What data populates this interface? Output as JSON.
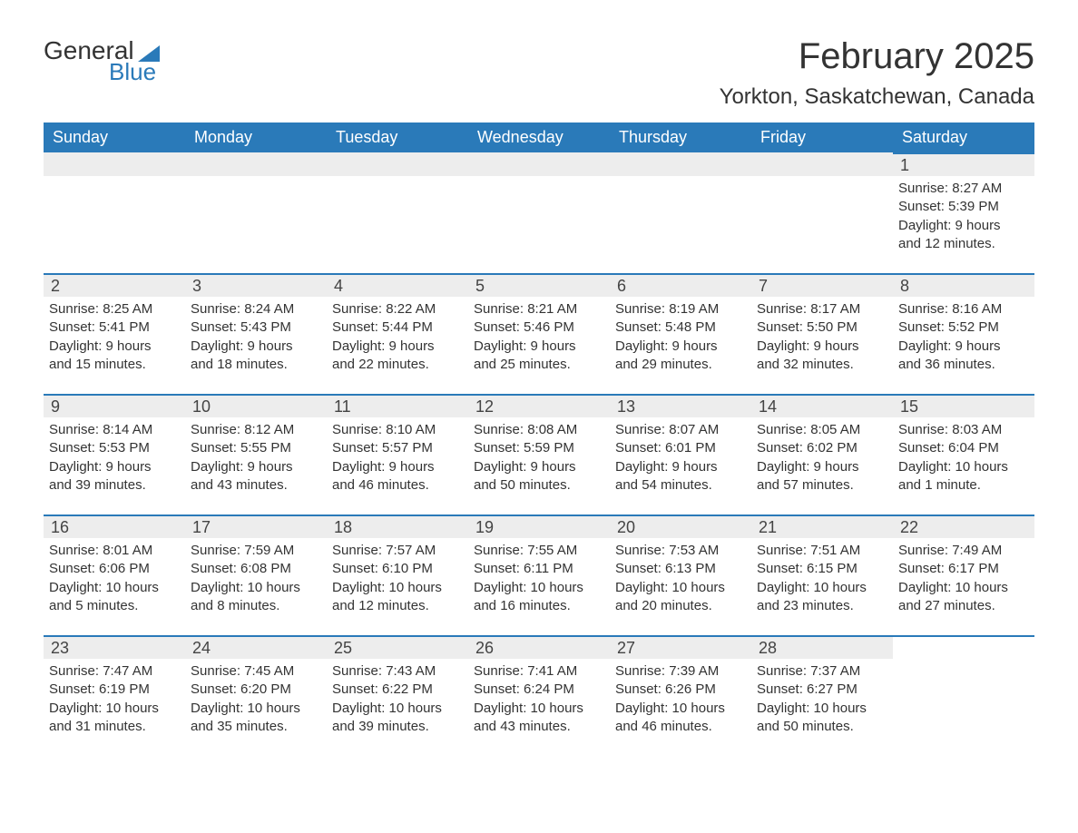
{
  "brand": {
    "main": "General",
    "sub": "Blue"
  },
  "title": "February 2025",
  "location": "Yorkton, Saskatchewan, Canada",
  "colors": {
    "accent": "#2a7ab9",
    "header_bg": "#2a7ab9",
    "header_text": "#ffffff",
    "daynum_bg": "#ededed",
    "text": "#333333",
    "bg": "#ffffff"
  },
  "weekdays": [
    "Sunday",
    "Monday",
    "Tuesday",
    "Wednesday",
    "Thursday",
    "Friday",
    "Saturday"
  ],
  "weeks": [
    [
      {},
      {},
      {},
      {},
      {},
      {},
      {
        "n": "1",
        "sunrise": "Sunrise: 8:27 AM",
        "sunset": "Sunset: 5:39 PM",
        "d1": "Daylight: 9 hours",
        "d2": "and 12 minutes."
      }
    ],
    [
      {
        "n": "2",
        "sunrise": "Sunrise: 8:25 AM",
        "sunset": "Sunset: 5:41 PM",
        "d1": "Daylight: 9 hours",
        "d2": "and 15 minutes."
      },
      {
        "n": "3",
        "sunrise": "Sunrise: 8:24 AM",
        "sunset": "Sunset: 5:43 PM",
        "d1": "Daylight: 9 hours",
        "d2": "and 18 minutes."
      },
      {
        "n": "4",
        "sunrise": "Sunrise: 8:22 AM",
        "sunset": "Sunset: 5:44 PM",
        "d1": "Daylight: 9 hours",
        "d2": "and 22 minutes."
      },
      {
        "n": "5",
        "sunrise": "Sunrise: 8:21 AM",
        "sunset": "Sunset: 5:46 PM",
        "d1": "Daylight: 9 hours",
        "d2": "and 25 minutes."
      },
      {
        "n": "6",
        "sunrise": "Sunrise: 8:19 AM",
        "sunset": "Sunset: 5:48 PM",
        "d1": "Daylight: 9 hours",
        "d2": "and 29 minutes."
      },
      {
        "n": "7",
        "sunrise": "Sunrise: 8:17 AM",
        "sunset": "Sunset: 5:50 PM",
        "d1": "Daylight: 9 hours",
        "d2": "and 32 minutes."
      },
      {
        "n": "8",
        "sunrise": "Sunrise: 8:16 AM",
        "sunset": "Sunset: 5:52 PM",
        "d1": "Daylight: 9 hours",
        "d2": "and 36 minutes."
      }
    ],
    [
      {
        "n": "9",
        "sunrise": "Sunrise: 8:14 AM",
        "sunset": "Sunset: 5:53 PM",
        "d1": "Daylight: 9 hours",
        "d2": "and 39 minutes."
      },
      {
        "n": "10",
        "sunrise": "Sunrise: 8:12 AM",
        "sunset": "Sunset: 5:55 PM",
        "d1": "Daylight: 9 hours",
        "d2": "and 43 minutes."
      },
      {
        "n": "11",
        "sunrise": "Sunrise: 8:10 AM",
        "sunset": "Sunset: 5:57 PM",
        "d1": "Daylight: 9 hours",
        "d2": "and 46 minutes."
      },
      {
        "n": "12",
        "sunrise": "Sunrise: 8:08 AM",
        "sunset": "Sunset: 5:59 PM",
        "d1": "Daylight: 9 hours",
        "d2": "and 50 minutes."
      },
      {
        "n": "13",
        "sunrise": "Sunrise: 8:07 AM",
        "sunset": "Sunset: 6:01 PM",
        "d1": "Daylight: 9 hours",
        "d2": "and 54 minutes."
      },
      {
        "n": "14",
        "sunrise": "Sunrise: 8:05 AM",
        "sunset": "Sunset: 6:02 PM",
        "d1": "Daylight: 9 hours",
        "d2": "and 57 minutes."
      },
      {
        "n": "15",
        "sunrise": "Sunrise: 8:03 AM",
        "sunset": "Sunset: 6:04 PM",
        "d1": "Daylight: 10 hours",
        "d2": "and 1 minute."
      }
    ],
    [
      {
        "n": "16",
        "sunrise": "Sunrise: 8:01 AM",
        "sunset": "Sunset: 6:06 PM",
        "d1": "Daylight: 10 hours",
        "d2": "and 5 minutes."
      },
      {
        "n": "17",
        "sunrise": "Sunrise: 7:59 AM",
        "sunset": "Sunset: 6:08 PM",
        "d1": "Daylight: 10 hours",
        "d2": "and 8 minutes."
      },
      {
        "n": "18",
        "sunrise": "Sunrise: 7:57 AM",
        "sunset": "Sunset: 6:10 PM",
        "d1": "Daylight: 10 hours",
        "d2": "and 12 minutes."
      },
      {
        "n": "19",
        "sunrise": "Sunrise: 7:55 AM",
        "sunset": "Sunset: 6:11 PM",
        "d1": "Daylight: 10 hours",
        "d2": "and 16 minutes."
      },
      {
        "n": "20",
        "sunrise": "Sunrise: 7:53 AM",
        "sunset": "Sunset: 6:13 PM",
        "d1": "Daylight: 10 hours",
        "d2": "and 20 minutes."
      },
      {
        "n": "21",
        "sunrise": "Sunrise: 7:51 AM",
        "sunset": "Sunset: 6:15 PM",
        "d1": "Daylight: 10 hours",
        "d2": "and 23 minutes."
      },
      {
        "n": "22",
        "sunrise": "Sunrise: 7:49 AM",
        "sunset": "Sunset: 6:17 PM",
        "d1": "Daylight: 10 hours",
        "d2": "and 27 minutes."
      }
    ],
    [
      {
        "n": "23",
        "sunrise": "Sunrise: 7:47 AM",
        "sunset": "Sunset: 6:19 PM",
        "d1": "Daylight: 10 hours",
        "d2": "and 31 minutes."
      },
      {
        "n": "24",
        "sunrise": "Sunrise: 7:45 AM",
        "sunset": "Sunset: 6:20 PM",
        "d1": "Daylight: 10 hours",
        "d2": "and 35 minutes."
      },
      {
        "n": "25",
        "sunrise": "Sunrise: 7:43 AM",
        "sunset": "Sunset: 6:22 PM",
        "d1": "Daylight: 10 hours",
        "d2": "and 39 minutes."
      },
      {
        "n": "26",
        "sunrise": "Sunrise: 7:41 AM",
        "sunset": "Sunset: 6:24 PM",
        "d1": "Daylight: 10 hours",
        "d2": "and 43 minutes."
      },
      {
        "n": "27",
        "sunrise": "Sunrise: 7:39 AM",
        "sunset": "Sunset: 6:26 PM",
        "d1": "Daylight: 10 hours",
        "d2": "and 46 minutes."
      },
      {
        "n": "28",
        "sunrise": "Sunrise: 7:37 AM",
        "sunset": "Sunset: 6:27 PM",
        "d1": "Daylight: 10 hours",
        "d2": "and 50 minutes."
      },
      {}
    ]
  ]
}
